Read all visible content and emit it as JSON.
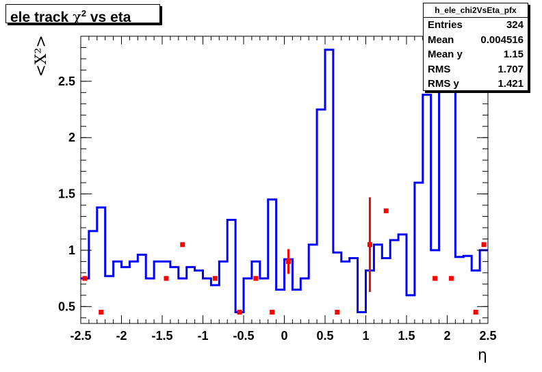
{
  "title": {
    "prefix": "ele track ",
    "chi": "χ",
    "sup": "2",
    "suffix": " vs eta"
  },
  "stats": {
    "name": "h_ele_chi2VsEta_pfx",
    "rows": [
      {
        "label": "Entries",
        "value": "324"
      },
      {
        "label": "Mean",
        "value": "0.004516"
      },
      {
        "label": "Mean y",
        "value": "1.15"
      },
      {
        "label": "RMS",
        "value": "1.707"
      },
      {
        "label": "RMS y",
        "value": "1.421"
      }
    ]
  },
  "chart_data": {
    "type": "line",
    "xlabel": "η",
    "ylabel": "<X²>",
    "xlim": [
      -2.5,
      2.5
    ],
    "ylim": [
      0.35,
      2.9
    ],
    "x_ticks": [
      "-2.5",
      "-2",
      "-1.5",
      "-1",
      "-0.5",
      "0",
      "0.5",
      "1",
      "1.5",
      "2",
      "2.5"
    ],
    "y_ticks": [
      "0.5",
      "1",
      "1.5",
      "2",
      "2.5"
    ],
    "grid": false,
    "series": [
      {
        "style": "step",
        "color": "#0000ff",
        "bin_width": 0.1,
        "bin_centers": [
          -2.45,
          -2.35,
          -2.25,
          -2.15,
          -2.05,
          -1.95,
          -1.85,
          -1.75,
          -1.65,
          -1.55,
          -1.45,
          -1.35,
          -1.25,
          -1.15,
          -1.05,
          -0.95,
          -0.85,
          -0.75,
          -0.65,
          -0.55,
          -0.45,
          -0.35,
          -0.25,
          -0.15,
          -0.05,
          0.05,
          0.15,
          0.25,
          0.35,
          0.45,
          0.55,
          0.65,
          0.75,
          0.85,
          0.95,
          1.05,
          1.15,
          1.25,
          1.35,
          1.45,
          1.55,
          1.65,
          1.75,
          1.85,
          1.95,
          2.05,
          2.15,
          2.25,
          2.35,
          2.45
        ],
        "values": [
          0.75,
          1.17,
          1.38,
          0.77,
          0.9,
          0.85,
          0.9,
          0.96,
          0.75,
          0.9,
          0.9,
          0.85,
          0.75,
          0.85,
          0.82,
          0.75,
          0.69,
          0.9,
          1.27,
          0.45,
          0.75,
          0.9,
          0.75,
          1.45,
          0.65,
          0.92,
          0.65,
          0.75,
          1.05,
          2.25,
          2.78,
          0.98,
          0.9,
          0.93,
          0.45,
          0.82,
          1.05,
          0.93,
          1.09,
          1.14,
          0.6,
          1.6,
          2.38,
          1.0,
          2.55,
          2.6,
          0.94,
          0.95,
          0.82,
          1.0
        ]
      },
      {
        "style": "points",
        "color": "#ff0000",
        "points": [
          {
            "x": -2.45,
            "y": 0.75
          },
          {
            "x": -2.25,
            "y": 0.45
          },
          {
            "x": -1.45,
            "y": 0.75
          },
          {
            "x": -1.25,
            "y": 1.05
          },
          {
            "x": -0.85,
            "y": 0.75
          },
          {
            "x": -0.55,
            "y": 0.45
          },
          {
            "x": -0.35,
            "y": 0.75
          },
          {
            "x": -0.15,
            "y": 0.45
          },
          {
            "x": 0.05,
            "y": 0.9,
            "err": 0.11
          },
          {
            "x": 0.65,
            "y": 0.45
          },
          {
            "x": 1.05,
            "y": 1.05,
            "err": 0.42
          },
          {
            "x": 1.25,
            "y": 1.35
          },
          {
            "x": 1.85,
            "y": 0.75
          },
          {
            "x": 2.05,
            "y": 0.75
          },
          {
            "x": 2.35,
            "y": 0.45
          },
          {
            "x": 2.45,
            "y": 1.05
          }
        ]
      }
    ]
  }
}
